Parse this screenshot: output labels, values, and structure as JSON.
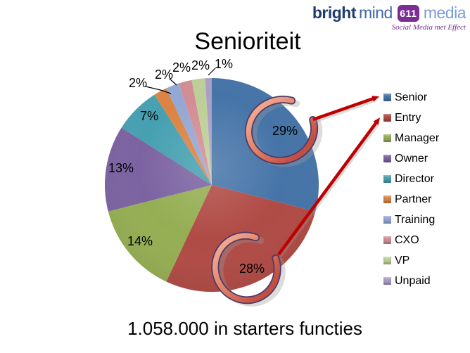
{
  "logo": {
    "part1": "bright",
    "part2": "mind",
    "badge": "611",
    "part3": "media",
    "tagline": "Social Media met Effect",
    "badge_color": "#7B2E93",
    "navy": "#1E3C6E",
    "blue": "#3E68AE",
    "light_blue": "#7C9CD6"
  },
  "footer": {
    "text": "1.058.000 in starters functies"
  },
  "chart_data": {
    "type": "pie",
    "title": "Senioriteit",
    "categories": [
      "Senior",
      "Entry",
      "Manager",
      "Owner",
      "Director",
      "Partner",
      "Training",
      "CXO",
      "VP",
      "Unpaid"
    ],
    "values": [
      29,
      28,
      14,
      13,
      7,
      2,
      2,
      2,
      2,
      1
    ],
    "unit": "percent",
    "labels": [
      "29%",
      "28%",
      "14%",
      "13%",
      "7%",
      "2%",
      "2%",
      "2%",
      "2%",
      "1%"
    ],
    "colors": [
      "#4674A8",
      "#B04B45",
      "#95AE53",
      "#7B63A1",
      "#46A0B1",
      "#DB8344",
      "#93A7D4",
      "#D18E94",
      "#BCCF97",
      "#AB9DC6"
    ],
    "legend_position": "right",
    "start_angle_deg": 0,
    "direction": "clockwise",
    "annotation_color": "#C00000",
    "annotations": [
      {
        "type": "hand-drawn-circle",
        "target": "Senior",
        "label": "29%"
      },
      {
        "type": "hand-drawn-circle",
        "target": "Entry",
        "label": "28%"
      },
      {
        "type": "arrow",
        "from": "Senior circle",
        "to": "legend Senior",
        "color": "#C00000"
      },
      {
        "type": "arrow",
        "from": "Entry circle",
        "to": "legend Entry",
        "color": "#C00000"
      }
    ]
  }
}
